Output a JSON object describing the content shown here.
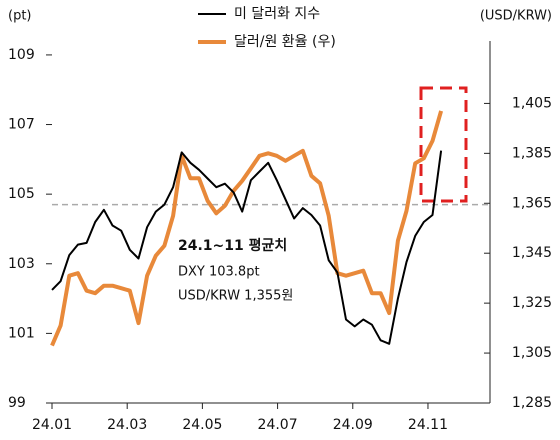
{
  "chart_data": {
    "type": "line",
    "y_unit_label": "(pt)",
    "y2_unit_label": "(USD/KRW)",
    "x": [
      0,
      0.23,
      0.46,
      0.69,
      0.92,
      1.15,
      1.38,
      1.61,
      1.84,
      2.07,
      2.3,
      2.53,
      2.76,
      2.99,
      3.22,
      3.45,
      3.68,
      3.91,
      4.14,
      4.37,
      4.6,
      4.83,
      5.06,
      5.29,
      5.52,
      5.75,
      5.98,
      6.21,
      6.44,
      6.67,
      6.9,
      7.13,
      7.36,
      7.59,
      7.82,
      8.05,
      8.28,
      8.51,
      8.74,
      8.97,
      9.2,
      9.43,
      9.66,
      9.89,
      10.12,
      10.35
    ],
    "series": [
      {
        "name": "미 달러화 지수",
        "color": "#000000",
        "axis": "y",
        "values": [
          102.25,
          102.5,
          103.25,
          103.55,
          103.6,
          104.2,
          104.55,
          104.1,
          103.95,
          103.4,
          103.15,
          104.05,
          104.5,
          104.7,
          105.2,
          106.2,
          105.9,
          105.7,
          105.45,
          105.2,
          105.3,
          105.05,
          104.5,
          105.4,
          105.65,
          105.9,
          105.4,
          104.85,
          104.3,
          104.6,
          104.4,
          104.1,
          103.1,
          102.75,
          101.4,
          101.2,
          101.4,
          101.25,
          100.8,
          100.7,
          102.0,
          103.05,
          103.8,
          104.2,
          104.4,
          106.25
        ]
      },
      {
        "name": "달러/원 환율 (우)",
        "color": "#e8893a",
        "axis": "y2",
        "values": [
          1308,
          1316,
          1336,
          1337,
          1330,
          1329,
          1332,
          1332,
          1331,
          1330,
          1317,
          1336,
          1344,
          1348,
          1360,
          1384,
          1375,
          1375,
          1366,
          1361,
          1364,
          1370,
          1374,
          1379,
          1384,
          1385,
          1384,
          1382,
          1384,
          1386,
          1376,
          1373,
          1360,
          1337,
          1336,
          1337,
          1338,
          1329,
          1329,
          1321,
          1350,
          1362,
          1381,
          1383,
          1390,
          1402
        ]
      }
    ],
    "xlim": [
      0,
      11.65
    ],
    "xticks": [
      {
        "value": 0,
        "label": "24.01"
      },
      {
        "value": 2,
        "label": "24.03"
      },
      {
        "value": 4,
        "label": "24.05"
      },
      {
        "value": 6,
        "label": "24.07"
      },
      {
        "value": 8,
        "label": "24.09"
      },
      {
        "value": 10,
        "label": "24.11"
      }
    ],
    "ylim": [
      99,
      109.4
    ],
    "yticks": [
      99,
      101,
      103,
      105,
      107,
      109
    ],
    "y2lim": [
      1285,
      1430
    ],
    "y2ticks": [
      {
        "value": 1285,
        "label": "1,285"
      },
      {
        "value": 1305,
        "label": "1,305"
      },
      {
        "value": 1325,
        "label": "1,325"
      },
      {
        "value": 1345,
        "label": "1,345"
      },
      {
        "value": 1365,
        "label": "1,365"
      },
      {
        "value": 1385,
        "label": "1,385"
      },
      {
        "value": 1405,
        "label": "1,405"
      }
    ],
    "reference_line": 104.7,
    "annotation": {
      "title": "24.1~11 평균치",
      "lines": [
        "DXY 103.8pt",
        "USD/KRW 1,355원"
      ]
    }
  }
}
